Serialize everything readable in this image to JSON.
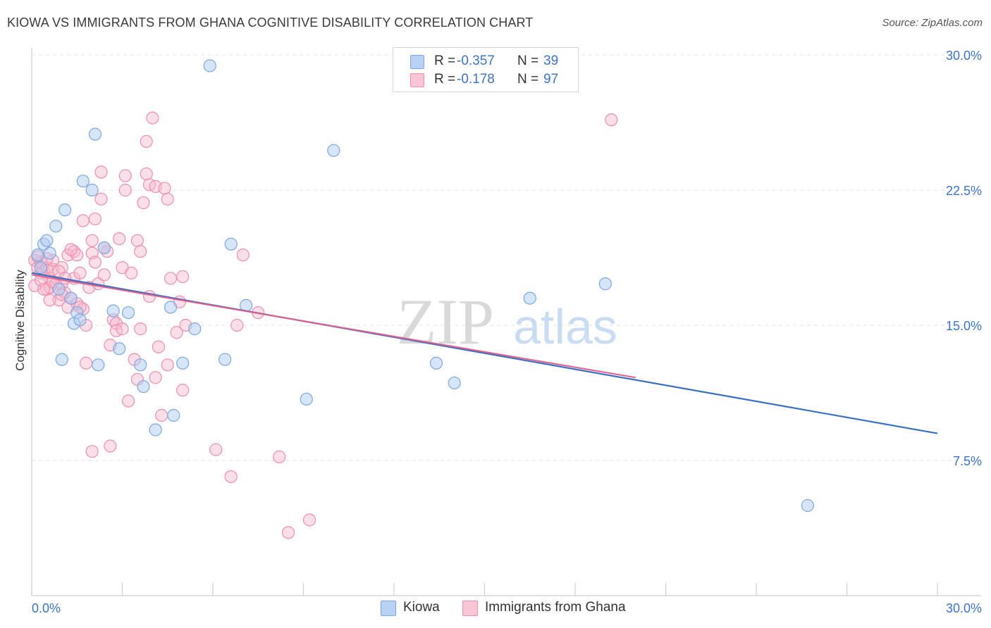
{
  "header": {
    "title": "KIOWA VS IMMIGRANTS FROM GHANA COGNITIVE DISABILITY CORRELATION CHART",
    "source": "Source: ZipAtlas.com"
  },
  "legend": {
    "rows": [
      {
        "r_label": "R =",
        "r_value": "-0.357",
        "n_label": "N =",
        "n_value": "39"
      },
      {
        "r_label": "R =",
        "r_value": "-0.178",
        "n_label": "N =",
        "n_value": "97"
      }
    ]
  },
  "watermark": {
    "zip": "ZIP",
    "atlas": "atlas"
  },
  "colors": {
    "kiowa_fill": "#aecbf2",
    "kiowa_stroke": "#7ea7e0",
    "kiowa_line": "#3a6fc4",
    "ghana_fill": "#f7b8cb",
    "ghana_stroke": "#ee8fae",
    "ghana_line": "#e0608c",
    "tick_label": "#3d74c7",
    "grid": "#e3e3e3"
  },
  "chart_data": {
    "type": "scatter",
    "title": "KIOWA VS IMMIGRANTS FROM GHANA COGNITIVE DISABILITY CORRELATION CHART",
    "xlabel": "",
    "ylabel": "Cognitive Disability",
    "xlim": [
      0,
      30
    ],
    "ylim": [
      0,
      30
    ],
    "x_tick_labels": [
      "0.0%",
      "30.0%"
    ],
    "y_ticks": [
      7.5,
      15.0,
      22.5,
      30.0
    ],
    "y_tick_labels": [
      "7.5%",
      "15.0%",
      "22.5%",
      "30.0%"
    ],
    "grid": true,
    "legend_position": "top-center",
    "series": [
      {
        "name": "Kiowa",
        "r": -0.357,
        "n": 39,
        "trend": {
          "x": [
            0,
            30
          ],
          "y": [
            17.9,
            9.0
          ]
        },
        "points": [
          [
            0.2,
            18.9
          ],
          [
            0.4,
            19.5
          ],
          [
            0.6,
            19.0
          ],
          [
            0.5,
            19.7
          ],
          [
            0.3,
            18.2
          ],
          [
            0.8,
            20.5
          ],
          [
            1.1,
            21.4
          ],
          [
            0.9,
            17.0
          ],
          [
            1.3,
            16.5
          ],
          [
            1.4,
            15.1
          ],
          [
            1.5,
            15.7
          ],
          [
            1.6,
            15.3
          ],
          [
            1.7,
            23.0
          ],
          [
            2.0,
            22.5
          ],
          [
            2.1,
            25.6
          ],
          [
            2.2,
            12.8
          ],
          [
            2.4,
            19.3
          ],
          [
            2.7,
            15.8
          ],
          [
            2.9,
            13.7
          ],
          [
            3.2,
            15.7
          ],
          [
            3.6,
            12.8
          ],
          [
            3.7,
            11.6
          ],
          [
            4.1,
            9.2
          ],
          [
            4.6,
            16.0
          ],
          [
            4.7,
            10.0
          ],
          [
            5.0,
            12.9
          ],
          [
            5.4,
            14.8
          ],
          [
            5.9,
            29.4
          ],
          [
            6.4,
            13.1
          ],
          [
            6.6,
            19.5
          ],
          [
            7.1,
            16.1
          ],
          [
            9.1,
            10.9
          ],
          [
            10.0,
            24.7
          ],
          [
            13.4,
            12.9
          ],
          [
            14.0,
            11.8
          ],
          [
            16.5,
            16.5
          ],
          [
            19.0,
            17.3
          ],
          [
            25.7,
            5.0
          ],
          [
            1.0,
            13.1
          ]
        ]
      },
      {
        "name": "Immigrants from Ghana",
        "r": -0.178,
        "n": 97,
        "trend": {
          "x": [
            0,
            20
          ],
          "y": [
            17.8,
            12.1
          ]
        },
        "points": [
          [
            0.1,
            18.6
          ],
          [
            0.2,
            18.2
          ],
          [
            0.3,
            17.9
          ],
          [
            0.3,
            18.5
          ],
          [
            0.4,
            18.0
          ],
          [
            0.5,
            17.0
          ],
          [
            0.5,
            18.2
          ],
          [
            0.6,
            17.6
          ],
          [
            0.6,
            17.1
          ],
          [
            0.7,
            18.1
          ],
          [
            0.7,
            18.6
          ],
          [
            0.8,
            17.3
          ],
          [
            0.9,
            16.4
          ],
          [
            1.0,
            18.2
          ],
          [
            1.0,
            17.3
          ],
          [
            1.1,
            16.8
          ],
          [
            1.2,
            16.0
          ],
          [
            1.2,
            18.9
          ],
          [
            1.3,
            16.5
          ],
          [
            1.4,
            19.1
          ],
          [
            1.4,
            17.6
          ],
          [
            1.5,
            16.2
          ],
          [
            1.5,
            18.9
          ],
          [
            1.6,
            17.9
          ],
          [
            1.7,
            15.9
          ],
          [
            1.7,
            20.8
          ],
          [
            1.8,
            15.0
          ],
          [
            1.8,
            12.9
          ],
          [
            1.9,
            17.1
          ],
          [
            2.0,
            8.0
          ],
          [
            2.0,
            19.0
          ],
          [
            2.1,
            18.5
          ],
          [
            2.1,
            20.9
          ],
          [
            2.2,
            17.3
          ],
          [
            2.3,
            22.0
          ],
          [
            2.3,
            23.5
          ],
          [
            2.4,
            17.8
          ],
          [
            2.5,
            19.1
          ],
          [
            2.6,
            13.9
          ],
          [
            2.6,
            8.3
          ],
          [
            2.7,
            15.3
          ],
          [
            2.8,
            15.1
          ],
          [
            2.8,
            14.7
          ],
          [
            2.9,
            19.8
          ],
          [
            3.0,
            18.2
          ],
          [
            3.0,
            14.8
          ],
          [
            3.1,
            22.5
          ],
          [
            3.1,
            23.3
          ],
          [
            3.2,
            10.8
          ],
          [
            3.3,
            17.9
          ],
          [
            3.4,
            13.1
          ],
          [
            3.5,
            12.0
          ],
          [
            3.5,
            19.7
          ],
          [
            3.6,
            14.8
          ],
          [
            3.6,
            19.1
          ],
          [
            3.7,
            21.8
          ],
          [
            3.8,
            23.4
          ],
          [
            3.8,
            25.2
          ],
          [
            3.9,
            16.6
          ],
          [
            3.9,
            22.8
          ],
          [
            4.0,
            26.5
          ],
          [
            4.1,
            22.7
          ],
          [
            4.1,
            12.1
          ],
          [
            4.2,
            13.8
          ],
          [
            4.3,
            10.0
          ],
          [
            4.4,
            22.6
          ],
          [
            4.5,
            12.8
          ],
          [
            4.5,
            22.0
          ],
          [
            4.6,
            17.6
          ],
          [
            4.8,
            14.6
          ],
          [
            4.9,
            16.3
          ],
          [
            5.0,
            17.7
          ],
          [
            5.0,
            11.4
          ],
          [
            5.1,
            15.0
          ],
          [
            6.1,
            8.1
          ],
          [
            6.6,
            6.6
          ],
          [
            6.8,
            15.0
          ],
          [
            7.0,
            18.9
          ],
          [
            7.5,
            15.7
          ],
          [
            8.2,
            7.7
          ],
          [
            8.5,
            3.5
          ],
          [
            9.2,
            4.2
          ],
          [
            19.2,
            26.4
          ],
          [
            0.1,
            17.2
          ],
          [
            0.2,
            18.8
          ],
          [
            0.3,
            17.5
          ],
          [
            0.4,
            17.0
          ],
          [
            0.5,
            18.7
          ],
          [
            0.6,
            16.4
          ],
          [
            0.7,
            17.4
          ],
          [
            0.9,
            18.0
          ],
          [
            1.0,
            16.7
          ],
          [
            1.1,
            17.6
          ],
          [
            1.3,
            19.2
          ],
          [
            1.6,
            16.0
          ],
          [
            2.4,
            19.3
          ],
          [
            2.0,
            19.7
          ]
        ]
      }
    ]
  },
  "bottom_legend": {
    "items": [
      "Kiowa",
      "Immigrants from Ghana"
    ]
  }
}
